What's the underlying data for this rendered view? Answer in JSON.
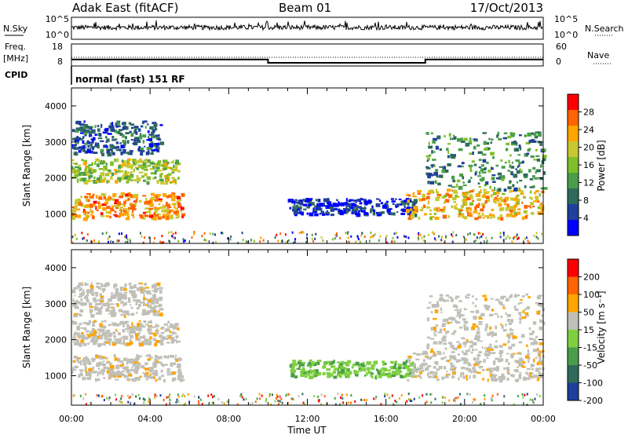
{
  "header": {
    "station": "Adak East (fitACF)",
    "beam": "Beam 01",
    "date": "17/Oct/2013"
  },
  "noise_panel": {
    "left_label": "N.Sky",
    "right_label": "N.Search",
    "left_ticks": [
      "10^5",
      "10^0"
    ],
    "right_ticks": [
      "10^5",
      "10^0"
    ]
  },
  "freq_panel": {
    "left_label_1": "Freq.",
    "left_label_2": "[MHz]",
    "right_label": "Nave",
    "left_ticks": [
      "18",
      "8"
    ],
    "right_ticks": [
      "60",
      "0"
    ],
    "freq_steps": [
      {
        "from_hour": 0,
        "to_hour": 10,
        "value": 12
      },
      {
        "from_hour": 10,
        "to_hour": 18,
        "value": 10.5
      },
      {
        "from_hour": 18,
        "to_hour": 24,
        "value": 12
      }
    ]
  },
  "cpid_panel": {
    "label": "CPID",
    "program": "normal (fast) 151 RF"
  },
  "power_panel": {
    "ylabel": "Slant Range [km]",
    "yticks": [
      "4000",
      "3000",
      "2000",
      "1000"
    ],
    "colorbar_label": "Power [dB]",
    "colorbar_ticks": [
      "28",
      "24",
      "20",
      "16",
      "12",
      "8",
      "4"
    ],
    "colors": [
      "#0000ff",
      "#1f3f9c",
      "#2e6b5a",
      "#4a9e4a",
      "#7fbf2a",
      "#c8c830",
      "#ffa500",
      "#ff6400",
      "#ff0000"
    ]
  },
  "velocity_panel": {
    "ylabel": "Slant Range [km]",
    "yticks": [
      "4000",
      "3000",
      "2000",
      "1000"
    ],
    "colorbar_label": "Velocity [m s⁻¹]",
    "colorbar_ticks": [
      "200",
      "100",
      "50",
      "15",
      "-15",
      "-50",
      "-100",
      "-200"
    ],
    "colors": [
      "#1f3f9c",
      "#2e6b5a",
      "#4a9e4a",
      "#7fd040",
      "#c0c0b8",
      "#ffa500",
      "#ff6400",
      "#ff0000"
    ]
  },
  "time_axis": {
    "label": "Time UT",
    "ticks": [
      "00:00",
      "04:00",
      "08:00",
      "12:00",
      "16:00",
      "20:00",
      "00:00"
    ]
  },
  "chart_data": {
    "type": "heatmap",
    "x_range_hours": [
      0,
      24
    ],
    "y_range_km": [
      180,
      4500
    ],
    "regions": [
      {
        "name": "",
        "t_start": 0.0,
        "t_end": 5.6,
        "r_min": 900,
        "r_max": 1600,
        "power_db": 26,
        "velocity": 0
      },
      {
        "name": "",
        "t_start": 0.0,
        "t_end": 5.4,
        "r_min": 1900,
        "r_max": 2550,
        "power_db": 19,
        "velocity": 0
      },
      {
        "name": "",
        "t_start": 0.0,
        "t_end": 4.5,
        "r_min": 2700,
        "r_max": 3600,
        "power_db": 9,
        "velocity": 0
      },
      {
        "name": "",
        "t_start": 11.0,
        "t_end": 17.5,
        "r_min": 1000,
        "r_max": 1450,
        "power_db": 6,
        "velocity": 40
      },
      {
        "name": "",
        "t_start": 17.0,
        "t_end": 24.0,
        "r_min": 900,
        "r_max": 1700,
        "power_db": 24,
        "velocity": 0
      },
      {
        "name": "",
        "t_start": 18.0,
        "t_end": 24.0,
        "r_min": 1700,
        "r_max": 3300,
        "power_db": 13,
        "velocity": 0
      }
    ]
  }
}
